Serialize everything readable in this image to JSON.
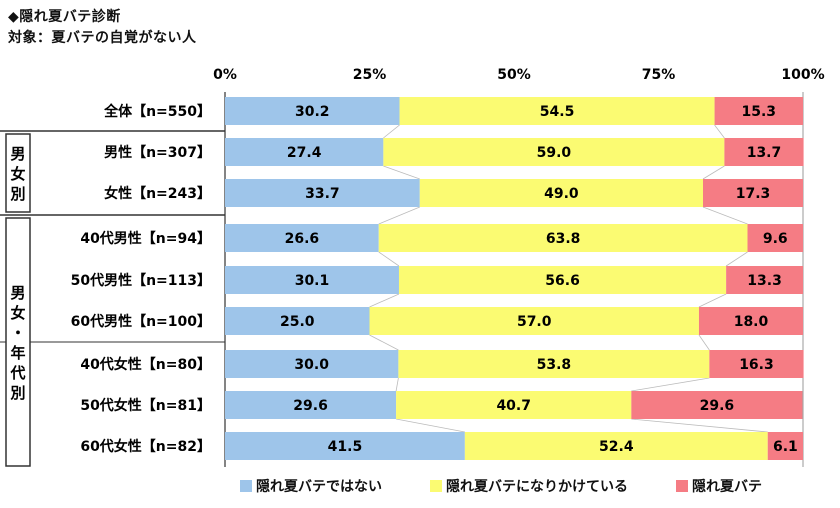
{
  "title": "◆隠れ夏バテ診断",
  "subtitle": "対象：夏バテの自覚がない人",
  "colors": {
    "blue": "#9ec5ea",
    "yellow": "#fbfb72",
    "red": "#f57c84"
  },
  "chart_data": {
    "type": "bar",
    "orientation": "horizontal-stacked-100",
    "xlim": [
      0,
      100
    ],
    "ticks": [
      "0%",
      "25%",
      "50%",
      "75%",
      "100%"
    ],
    "categories": [
      "全体【n=550】",
      "男性【n=307】",
      "女性【n=243】",
      "40代男性【n=94】",
      "50代男性【n=113】",
      "60代男性【n=100】",
      "40代女性【n=80】",
      "50代女性【n=81】",
      "60代女性【n=82】"
    ],
    "groups": [
      {
        "label": "男女別",
        "chars": [
          "男",
          "女",
          "別"
        ],
        "rows": [
          1,
          2
        ]
      },
      {
        "label": "男女・年代別",
        "chars": [
          "男",
          "女",
          "・",
          "年",
          "代",
          "別"
        ],
        "rows": [
          3,
          8
        ]
      }
    ],
    "series": [
      {
        "name": "隠れ夏バテではない",
        "values": [
          30.2,
          27.4,
          33.7,
          26.6,
          30.1,
          25.0,
          30.0,
          29.6,
          41.5
        ],
        "labels": [
          "30.2",
          "27.4",
          "33.7",
          "26.6",
          "30.1",
          "25.0",
          "30.0",
          "29.6",
          "41.5"
        ]
      },
      {
        "name": "隠れ夏バテになりかけている",
        "values": [
          54.5,
          59.0,
          49.0,
          63.8,
          56.6,
          57.0,
          53.8,
          40.7,
          52.4
        ],
        "labels": [
          "54.5",
          "59.0",
          "49.0",
          "63.8",
          "56.6",
          "57.0",
          "53.8",
          "40.7",
          "52.4"
        ]
      },
      {
        "name": "隠れ夏バテ",
        "values": [
          15.3,
          13.7,
          17.3,
          9.6,
          13.3,
          18.0,
          16.3,
          29.6,
          6.1
        ],
        "labels": [
          "15.3",
          "13.7",
          "17.3",
          "9.6",
          "13.3",
          "18.0",
          "16.3",
          "29.6",
          "6.1"
        ]
      }
    ],
    "legend_position": "bottom",
    "connector_lines": true
  }
}
